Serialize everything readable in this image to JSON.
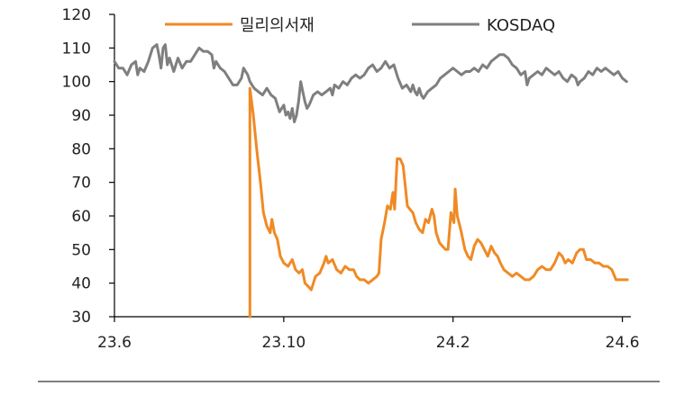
{
  "chart_data": {
    "type": "line",
    "title": "",
    "xlabel": "",
    "ylabel": "",
    "ylim": [
      30,
      120
    ],
    "yticks": [
      "120",
      "110",
      "100",
      "90",
      "80",
      "70",
      "60",
      "50",
      "40",
      "30"
    ],
    "xticks": [
      {
        "label": "23.6",
        "t": 0
      },
      {
        "label": "23.10",
        "t": 4
      },
      {
        "label": "24.2",
        "t": 8
      },
      {
        "label": "24.6",
        "t": 12
      }
    ],
    "x_unit": "months since 23.6",
    "xlim": [
      0,
      12.2
    ],
    "legend": {
      "position": "top"
    },
    "series": [
      {
        "name": "밀리의서재",
        "color": "#F08A24",
        "points": [
          [
            3.2,
            30
          ],
          [
            3.2,
            98
          ],
          [
            3.28,
            90
          ],
          [
            3.36,
            80
          ],
          [
            3.45,
            70
          ],
          [
            3.52,
            61
          ],
          [
            3.6,
            57
          ],
          [
            3.68,
            55
          ],
          [
            3.72,
            59
          ],
          [
            3.78,
            55
          ],
          [
            3.85,
            53
          ],
          [
            3.92,
            48
          ],
          [
            4.0,
            46
          ],
          [
            4.1,
            45
          ],
          [
            4.2,
            47
          ],
          [
            4.28,
            44
          ],
          [
            4.36,
            43
          ],
          [
            4.44,
            44
          ],
          [
            4.5,
            40
          ],
          [
            4.58,
            39
          ],
          [
            4.65,
            38
          ],
          [
            4.75,
            42
          ],
          [
            4.85,
            43
          ],
          [
            4.95,
            46
          ],
          [
            5.0,
            48
          ],
          [
            5.05,
            46
          ],
          [
            5.15,
            47
          ],
          [
            5.25,
            44
          ],
          [
            5.35,
            43
          ],
          [
            5.45,
            45
          ],
          [
            5.55,
            44
          ],
          [
            5.65,
            44
          ],
          [
            5.72,
            42
          ],
          [
            5.8,
            41
          ],
          [
            5.9,
            41
          ],
          [
            6.0,
            40
          ],
          [
            6.1,
            41
          ],
          [
            6.2,
            42
          ],
          [
            6.25,
            43
          ],
          [
            6.3,
            53
          ],
          [
            6.38,
            58
          ],
          [
            6.45,
            63
          ],
          [
            6.52,
            62
          ],
          [
            6.58,
            67
          ],
          [
            6.62,
            62
          ],
          [
            6.68,
            77
          ],
          [
            6.75,
            77
          ],
          [
            6.82,
            75
          ],
          [
            6.88,
            68
          ],
          [
            6.92,
            63
          ],
          [
            6.98,
            62
          ],
          [
            7.05,
            61
          ],
          [
            7.12,
            58
          ],
          [
            7.2,
            56
          ],
          [
            7.28,
            55
          ],
          [
            7.35,
            59
          ],
          [
            7.42,
            58
          ],
          [
            7.5,
            62
          ],
          [
            7.55,
            60
          ],
          [
            7.6,
            55
          ],
          [
            7.68,
            52
          ],
          [
            7.75,
            51
          ],
          [
            7.82,
            50
          ],
          [
            7.88,
            50
          ],
          [
            7.95,
            61
          ],
          [
            8.02,
            58
          ],
          [
            8.05,
            68
          ],
          [
            8.1,
            60
          ],
          [
            8.18,
            56
          ],
          [
            8.28,
            50
          ],
          [
            8.35,
            48
          ],
          [
            8.42,
            47
          ],
          [
            8.5,
            51
          ],
          [
            8.58,
            53
          ],
          [
            8.66,
            52
          ],
          [
            8.74,
            50
          ],
          [
            8.82,
            48
          ],
          [
            8.9,
            51
          ],
          [
            8.98,
            49
          ],
          [
            9.05,
            48
          ],
          [
            9.12,
            46
          ],
          [
            9.2,
            44
          ],
          [
            9.3,
            43
          ],
          [
            9.4,
            42
          ],
          [
            9.5,
            43
          ],
          [
            9.6,
            42
          ],
          [
            9.7,
            41
          ],
          [
            9.8,
            41
          ],
          [
            9.9,
            42
          ],
          [
            10.0,
            44
          ],
          [
            10.1,
            45
          ],
          [
            10.2,
            44
          ],
          [
            10.3,
            44
          ],
          [
            10.4,
            46
          ],
          [
            10.5,
            49
          ],
          [
            10.58,
            48
          ],
          [
            10.65,
            46
          ],
          [
            10.72,
            47
          ],
          [
            10.82,
            46
          ],
          [
            10.92,
            49
          ],
          [
            11.0,
            50
          ],
          [
            11.08,
            50
          ],
          [
            11.15,
            47
          ],
          [
            11.25,
            47
          ],
          [
            11.35,
            46
          ],
          [
            11.45,
            46
          ],
          [
            11.55,
            45
          ],
          [
            11.65,
            45
          ],
          [
            11.75,
            44
          ],
          [
            11.85,
            41
          ],
          [
            11.95,
            41
          ],
          [
            12.05,
            41
          ],
          [
            12.12,
            41
          ]
        ]
      },
      {
        "name": "KOSDAQ",
        "color": "#7F7F7F",
        "points": [
          [
            0.0,
            106
          ],
          [
            0.1,
            104
          ],
          [
            0.2,
            104
          ],
          [
            0.3,
            102
          ],
          [
            0.4,
            105
          ],
          [
            0.5,
            106
          ],
          [
            0.55,
            102
          ],
          [
            0.6,
            104
          ],
          [
            0.7,
            103
          ],
          [
            0.8,
            106
          ],
          [
            0.9,
            110
          ],
          [
            1.0,
            111
          ],
          [
            1.05,
            108
          ],
          [
            1.1,
            104
          ],
          [
            1.15,
            110
          ],
          [
            1.2,
            111
          ],
          [
            1.25,
            105
          ],
          [
            1.3,
            107
          ],
          [
            1.4,
            103
          ],
          [
            1.5,
            107
          ],
          [
            1.6,
            104
          ],
          [
            1.7,
            106
          ],
          [
            1.8,
            106
          ],
          [
            1.9,
            108
          ],
          [
            2.0,
            110
          ],
          [
            2.1,
            109
          ],
          [
            2.2,
            109
          ],
          [
            2.3,
            108
          ],
          [
            2.35,
            104
          ],
          [
            2.4,
            106
          ],
          [
            2.5,
            104
          ],
          [
            2.6,
            103
          ],
          [
            2.7,
            101
          ],
          [
            2.8,
            99
          ],
          [
            2.9,
            99
          ],
          [
            3.0,
            101
          ],
          [
            3.05,
            104
          ],
          [
            3.1,
            103
          ],
          [
            3.15,
            102
          ],
          [
            3.2,
            100
          ],
          [
            3.3,
            98
          ],
          [
            3.4,
            97
          ],
          [
            3.5,
            96
          ],
          [
            3.6,
            98
          ],
          [
            3.7,
            96
          ],
          [
            3.8,
            95
          ],
          [
            3.85,
            93
          ],
          [
            3.9,
            91
          ],
          [
            4.0,
            93
          ],
          [
            4.05,
            90
          ],
          [
            4.1,
            91
          ],
          [
            4.15,
            89
          ],
          [
            4.2,
            92
          ],
          [
            4.25,
            88
          ],
          [
            4.3,
            90
          ],
          [
            4.35,
            94
          ],
          [
            4.4,
            100
          ],
          [
            4.45,
            97
          ],
          [
            4.5,
            94
          ],
          [
            4.55,
            92
          ],
          [
            4.6,
            93
          ],
          [
            4.7,
            96
          ],
          [
            4.8,
            97
          ],
          [
            4.9,
            96
          ],
          [
            5.0,
            97
          ],
          [
            5.1,
            98
          ],
          [
            5.15,
            96
          ],
          [
            5.2,
            99
          ],
          [
            5.3,
            98
          ],
          [
            5.4,
            100
          ],
          [
            5.5,
            99
          ],
          [
            5.6,
            101
          ],
          [
            5.7,
            102
          ],
          [
            5.8,
            101
          ],
          [
            5.9,
            102
          ],
          [
            6.0,
            104
          ],
          [
            6.1,
            105
          ],
          [
            6.2,
            103
          ],
          [
            6.3,
            104
          ],
          [
            6.4,
            106
          ],
          [
            6.5,
            104
          ],
          [
            6.6,
            105
          ],
          [
            6.7,
            101
          ],
          [
            6.8,
            98
          ],
          [
            6.9,
            99
          ],
          [
            6.95,
            98
          ],
          [
            7.0,
            97
          ],
          [
            7.05,
            99
          ],
          [
            7.1,
            97
          ],
          [
            7.15,
            96
          ],
          [
            7.2,
            98
          ],
          [
            7.25,
            96
          ],
          [
            7.3,
            95
          ],
          [
            7.4,
            97
          ],
          [
            7.5,
            98
          ],
          [
            7.6,
            99
          ],
          [
            7.7,
            101
          ],
          [
            7.8,
            102
          ],
          [
            7.9,
            103
          ],
          [
            8.0,
            104
          ],
          [
            8.1,
            103
          ],
          [
            8.2,
            102
          ],
          [
            8.3,
            103
          ],
          [
            8.4,
            103
          ],
          [
            8.5,
            104
          ],
          [
            8.6,
            103
          ],
          [
            8.7,
            105
          ],
          [
            8.8,
            104
          ],
          [
            8.9,
            106
          ],
          [
            9.0,
            107
          ],
          [
            9.1,
            108
          ],
          [
            9.2,
            108
          ],
          [
            9.3,
            107
          ],
          [
            9.4,
            105
          ],
          [
            9.5,
            104
          ],
          [
            9.6,
            102
          ],
          [
            9.7,
            103
          ],
          [
            9.75,
            99
          ],
          [
            9.8,
            101
          ],
          [
            9.9,
            102
          ],
          [
            10.0,
            103
          ],
          [
            10.1,
            102
          ],
          [
            10.2,
            104
          ],
          [
            10.3,
            103
          ],
          [
            10.4,
            102
          ],
          [
            10.5,
            103
          ],
          [
            10.6,
            101
          ],
          [
            10.7,
            100
          ],
          [
            10.8,
            102
          ],
          [
            10.9,
            101
          ],
          [
            10.95,
            99
          ],
          [
            11.0,
            100
          ],
          [
            11.1,
            101
          ],
          [
            11.2,
            103
          ],
          [
            11.3,
            102
          ],
          [
            11.4,
            104
          ],
          [
            11.5,
            103
          ],
          [
            11.6,
            104
          ],
          [
            11.7,
            103
          ],
          [
            11.8,
            102
          ],
          [
            11.9,
            103
          ],
          [
            12.0,
            101
          ],
          [
            12.1,
            100
          ]
        ]
      }
    ]
  }
}
